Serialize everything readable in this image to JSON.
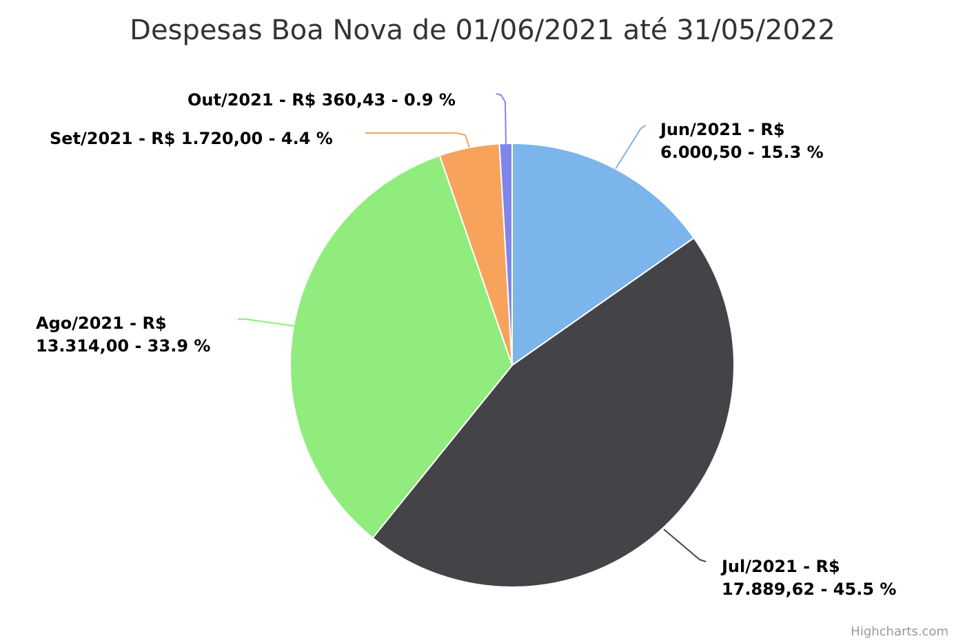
{
  "chart_data": {
    "type": "pie",
    "title": "Despesas Boa Nova de 01/06/2021 até 31/05/2022",
    "slices": [
      {
        "name": "Jun/2021",
        "value": 6000.5,
        "percent": 15.3,
        "color": "#7cb5ec",
        "label_lines": [
          "Jun/2021 - R$",
          "6.000,50 - 15.3 %"
        ]
      },
      {
        "name": "Jul/2021",
        "value": 17889.62,
        "percent": 45.5,
        "color": "#434348",
        "label_lines": [
          "Jul/2021 - R$",
          "17.889,62 - 45.5 %"
        ]
      },
      {
        "name": "Ago/2021",
        "value": 13314.0,
        "percent": 33.9,
        "color": "#90ed7d",
        "label_lines": [
          "Ago/2021 - R$",
          "13.314,00 - 33.9 %"
        ]
      },
      {
        "name": "Set/2021",
        "value": 1720.0,
        "percent": 4.4,
        "color": "#f7a35c",
        "label_lines": [
          "Set/2021 - R$ 1.720,00 - 4.4 %"
        ]
      },
      {
        "name": "Out/2021",
        "value": 360.43,
        "percent": 0.9,
        "color": "#8085e9",
        "label_lines": [
          "Out/2021 - R$ 360,43 - 0.9 %"
        ]
      }
    ]
  },
  "credits": "Highcharts.com"
}
